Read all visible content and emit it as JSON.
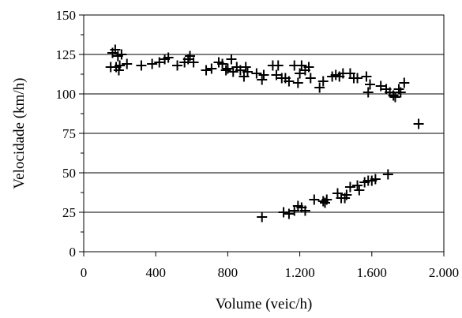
{
  "chart_data": {
    "type": "scatter",
    "title": "",
    "xlabel": "Volume (veic/h)",
    "ylabel": "Velocidade (km/h)",
    "xlim": [
      0,
      2000
    ],
    "ylim": [
      0,
      150
    ],
    "x_ticks": [
      0,
      400,
      800,
      1200,
      1600,
      2000
    ],
    "x_tick_labels": [
      "0",
      "400",
      "800",
      "1.200",
      "1.600",
      "2.000"
    ],
    "y_ticks": [
      0,
      25,
      50,
      75,
      100,
      125,
      150
    ],
    "y_tick_labels": [
      "0",
      "25",
      "50",
      "75",
      "100",
      "125",
      "150"
    ],
    "grid": "horizontal",
    "marker": "plus",
    "marker_color": "#000000",
    "series": [
      {
        "points": [
          [
            150,
            117
          ],
          [
            160,
            126
          ],
          [
            175,
            128
          ],
          [
            180,
            117
          ],
          [
            190,
            124
          ],
          [
            195,
            115
          ],
          [
            200,
            118
          ],
          [
            210,
            125
          ],
          [
            240,
            119
          ],
          [
            320,
            118
          ],
          [
            380,
            119
          ],
          [
            420,
            120
          ],
          [
            450,
            122
          ],
          [
            470,
            123
          ],
          [
            520,
            118
          ],
          [
            560,
            120
          ],
          [
            580,
            122
          ],
          [
            590,
            124
          ],
          [
            610,
            120
          ],
          [
            680,
            115
          ],
          [
            710,
            116
          ],
          [
            750,
            120
          ],
          [
            770,
            119
          ],
          [
            790,
            115
          ],
          [
            800,
            116
          ],
          [
            820,
            122
          ],
          [
            830,
            114
          ],
          [
            850,
            117
          ],
          [
            870,
            115
          ],
          [
            890,
            111
          ],
          [
            900,
            117
          ],
          [
            910,
            114
          ],
          [
            960,
            113
          ],
          [
            990,
            109
          ],
          [
            1000,
            112
          ],
          [
            1050,
            118
          ],
          [
            1070,
            112
          ],
          [
            1080,
            118
          ],
          [
            1100,
            110
          ],
          [
            1120,
            110
          ],
          [
            1140,
            108
          ],
          [
            1170,
            118
          ],
          [
            1190,
            107
          ],
          [
            1200,
            113
          ],
          [
            1210,
            118
          ],
          [
            1230,
            115
          ],
          [
            1250,
            117
          ],
          [
            1260,
            110
          ],
          [
            1310,
            104
          ],
          [
            1330,
            108
          ],
          [
            1380,
            111
          ],
          [
            1400,
            112
          ],
          [
            1420,
            111
          ],
          [
            1440,
            113
          ],
          [
            1480,
            113
          ],
          [
            1500,
            110
          ],
          [
            1520,
            110
          ],
          [
            1570,
            111
          ],
          [
            1580,
            101
          ],
          [
            1590,
            106
          ],
          [
            1650,
            105
          ],
          [
            1680,
            103
          ],
          [
            1700,
            101
          ],
          [
            1720,
            99
          ],
          [
            1730,
            98
          ],
          [
            1750,
            103
          ],
          [
            1760,
            101
          ],
          [
            1780,
            107
          ],
          [
            1860,
            81
          ],
          [
            990,
            22
          ],
          [
            1110,
            25
          ],
          [
            1140,
            24
          ],
          [
            1170,
            26
          ],
          [
            1190,
            29
          ],
          [
            1210,
            28
          ],
          [
            1230,
            26
          ],
          [
            1280,
            33
          ],
          [
            1330,
            32
          ],
          [
            1340,
            31
          ],
          [
            1350,
            33
          ],
          [
            1410,
            37
          ],
          [
            1430,
            34
          ],
          [
            1450,
            34
          ],
          [
            1460,
            36
          ],
          [
            1480,
            41
          ],
          [
            1520,
            42
          ],
          [
            1530,
            39
          ],
          [
            1560,
            44
          ],
          [
            1580,
            45
          ],
          [
            1600,
            45
          ],
          [
            1620,
            46
          ],
          [
            1690,
            49
          ]
        ]
      }
    ]
  }
}
